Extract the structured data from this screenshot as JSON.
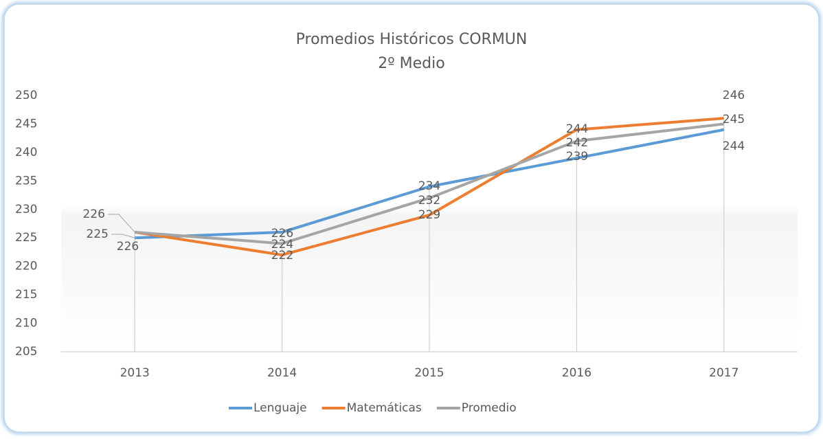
{
  "chart_data": {
    "type": "line",
    "title": "Promedios Históricos CORMUN",
    "subtitle": "2º Medio",
    "categories": [
      "2013",
      "2014",
      "2015",
      "2016",
      "2017"
    ],
    "series": [
      {
        "name": "Lenguaje",
        "color": "#5b9bd5",
        "values": [
          225,
          226,
          234,
          239,
          244
        ]
      },
      {
        "name": "Matemáticas",
        "color": "#ed7d31",
        "values": [
          226,
          222,
          229,
          244,
          246
        ]
      },
      {
        "name": "Promedio",
        "color": "#a5a5a5",
        "values": [
          226,
          224,
          232,
          242,
          245
        ]
      }
    ],
    "ylim": [
      205,
      250
    ],
    "yticks": [
      205,
      210,
      215,
      220,
      225,
      230,
      235,
      240,
      245,
      250
    ],
    "grid": false,
    "legend": "bottom"
  }
}
